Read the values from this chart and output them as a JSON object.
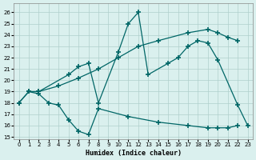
{
  "xlabel": "Humidex (Indice chaleur)",
  "bg_color": "#daf0ee",
  "grid_color": "#b0d0cc",
  "line_color": "#006666",
  "xlim": [
    -0.5,
    23.5
  ],
  "ylim": [
    14.8,
    26.8
  ],
  "yticks": [
    15,
    16,
    17,
    18,
    19,
    20,
    21,
    22,
    23,
    24,
    25,
    26
  ],
  "xticks": [
    0,
    1,
    2,
    3,
    4,
    5,
    6,
    7,
    8,
    9,
    10,
    11,
    12,
    13,
    14,
    15,
    16,
    17,
    18,
    19,
    20,
    21,
    22,
    23
  ],
  "series": [
    {
      "x": [
        0,
        1,
        2,
        4,
        6,
        8,
        10,
        12,
        14,
        17,
        19,
        20,
        21,
        22
      ],
      "y": [
        18.0,
        19.0,
        19.0,
        19.5,
        20.2,
        21.0,
        22.0,
        23.0,
        23.5,
        24.2,
        24.5,
        24.2,
        23.8,
        23.5
      ]
    },
    {
      "x": [
        0,
        1,
        2,
        3,
        4,
        5,
        6,
        7,
        8,
        11,
        14,
        17,
        19,
        20,
        21,
        22
      ],
      "y": [
        18.0,
        19.0,
        18.8,
        18.0,
        17.8,
        16.5,
        15.5,
        15.2,
        17.5,
        16.8,
        16.3,
        16.0,
        15.8,
        15.8,
        15.8,
        16.0
      ]
    },
    {
      "x": [
        1,
        2,
        5,
        6,
        7,
        8,
        10,
        11,
        12,
        13,
        15,
        16,
        17,
        18,
        19,
        20,
        22,
        23
      ],
      "y": [
        19.0,
        19.0,
        20.5,
        21.2,
        21.5,
        18.0,
        22.5,
        25.0,
        26.0,
        20.5,
        21.5,
        22.0,
        23.0,
        23.5,
        23.3,
        21.8,
        17.8,
        16.0
      ]
    }
  ],
  "marker": "+",
  "marker_size": 4,
  "linewidth": 0.9,
  "tick_fontsize": 5,
  "xlabel_fontsize": 6
}
